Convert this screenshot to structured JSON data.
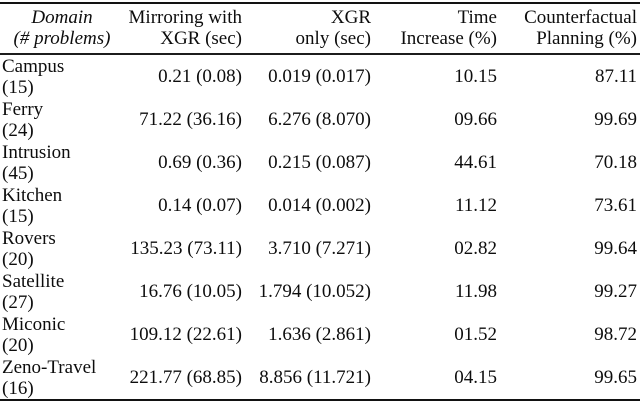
{
  "table": {
    "header": {
      "domain": {
        "line1": "Domain",
        "line2": "(# problems)"
      },
      "mirroring": {
        "line1": "Mirroring with",
        "line2": "XGR (sec)"
      },
      "xgr_only": {
        "line1": "XGR",
        "line2": "only (sec)"
      },
      "time_increase": {
        "line1": "Time",
        "line2": "Increase (%)"
      },
      "counterfactual": {
        "line1": "Counterfactual",
        "line2": "Planning (%)"
      }
    },
    "rows": [
      {
        "domain": "Campus",
        "problems": "(15)",
        "mirroring": "0.21 (0.08)",
        "xgr_only": "0.019 (0.017)",
        "time_increase": "10.15",
        "counterfactual": "87.11"
      },
      {
        "domain": "Ferry",
        "problems": "(24)",
        "mirroring": "71.22 (36.16)",
        "xgr_only": "6.276 (8.070)",
        "time_increase": "09.66",
        "counterfactual": "99.69"
      },
      {
        "domain": "Intrusion",
        "problems": "(45)",
        "mirroring": "0.69 (0.36)",
        "xgr_only": "0.215 (0.087)",
        "time_increase": "44.61",
        "counterfactual": "70.18"
      },
      {
        "domain": "Kitchen",
        "problems": "(15)",
        "mirroring": "0.14 (0.07)",
        "xgr_only": "0.014 (0.002)",
        "time_increase": "11.12",
        "counterfactual": "73.61"
      },
      {
        "domain": "Rovers",
        "problems": "(20)",
        "mirroring": "135.23 (73.11)",
        "xgr_only": "3.710 (7.271)",
        "time_increase": "02.82",
        "counterfactual": "99.64"
      },
      {
        "domain": "Satellite",
        "problems": "(27)",
        "mirroring": "16.76 (10.05)",
        "xgr_only": "1.794 (10.052)",
        "time_increase": "11.98",
        "counterfactual": "99.27"
      },
      {
        "domain": "Miconic",
        "problems": "(20)",
        "mirroring": "109.12 (22.61)",
        "xgr_only": "1.636 (2.861)",
        "time_increase": "01.52",
        "counterfactual": "98.72"
      },
      {
        "domain": "Zeno-Travel",
        "problems": "(16)",
        "mirroring": "221.77 (68.85)",
        "xgr_only": "8.856 (11.721)",
        "time_increase": "04.15",
        "counterfactual": "99.65"
      }
    ]
  },
  "colors": {
    "background": "#ffffff",
    "text": "#0d0d0d",
    "rule": "#121212"
  }
}
